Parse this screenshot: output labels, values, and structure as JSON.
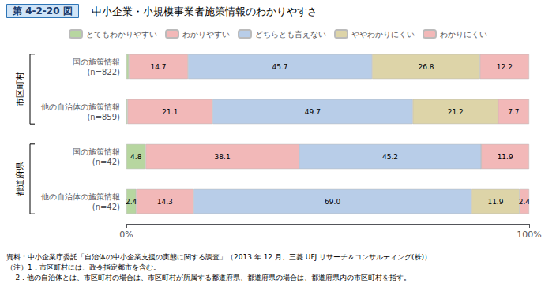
{
  "chart_data": {
    "type": "bar",
    "orientation": "horizontal",
    "stacked": true,
    "data_labels": true,
    "grid": false,
    "legend": "top",
    "title_label": "第 4-2-20 図",
    "title": "中小企業・小規模事業者施策情報のわかりやすさ",
    "categories": [
      "国の施策情報\n(n=822)",
      "他の自治体の施策情報\n(n=859)",
      "国の施策情報\n(n=42)",
      "他の自治体の施策情報\n(n=42)"
    ],
    "groups": [
      "市区町村",
      "市区町村",
      "都道府県",
      "都道府県"
    ],
    "series": [
      {
        "name": "とてもわかりやすい",
        "color": "#b7d6a0",
        "values": [
          0.6,
          0.3,
          4.8,
          2.4
        ],
        "value_labels": [
          null,
          null,
          "4.8",
          "2.4"
        ]
      },
      {
        "name": "わかりやすい",
        "color": "#f2b8b8",
        "values": [
          14.7,
          21.1,
          38.1,
          14.3
        ],
        "value_labels": [
          "14.7",
          "21.1",
          "38.1",
          "14.3"
        ]
      },
      {
        "name": "どちらとも言えない",
        "color": "#b8cde8",
        "values": [
          45.7,
          49.7,
          45.2,
          69.0
        ],
        "value_labels": [
          "45.7",
          "49.7",
          "45.2",
          "69.0"
        ]
      },
      {
        "name": "ややわかりにくい",
        "color": "#ddd4a8",
        "values": [
          26.8,
          21.2,
          0.0,
          11.9
        ],
        "value_labels": [
          "26.8",
          "21.2",
          null,
          "11.9"
        ]
      },
      {
        "name": "わかりにくい",
        "color": "#f2b8b8",
        "values": [
          12.2,
          7.7,
          11.9,
          2.4
        ],
        "value_labels": [
          "12.2",
          "7.7",
          "11.9",
          "2.4"
        ]
      }
    ],
    "xlim": [
      0,
      100
    ],
    "xticks": [
      {
        "value": 0,
        "label": "0%"
      },
      {
        "value": 100,
        "label": "100%"
      }
    ],
    "footnotes": [
      "資料：中小企業庁委託「自治体の中小企業支援の実態に関する調査」（2013 年 12 月、三菱 UFJ リサーチ＆コンサルティング(株)）",
      "（注）1．市区町村には、政令指定都市を含む。",
      "    2．他の自治体とは、市区町村の場合は、市区町村が所属する都道府県、都道府県の場合は、都道府県内の市区町村を指す。"
    ]
  }
}
